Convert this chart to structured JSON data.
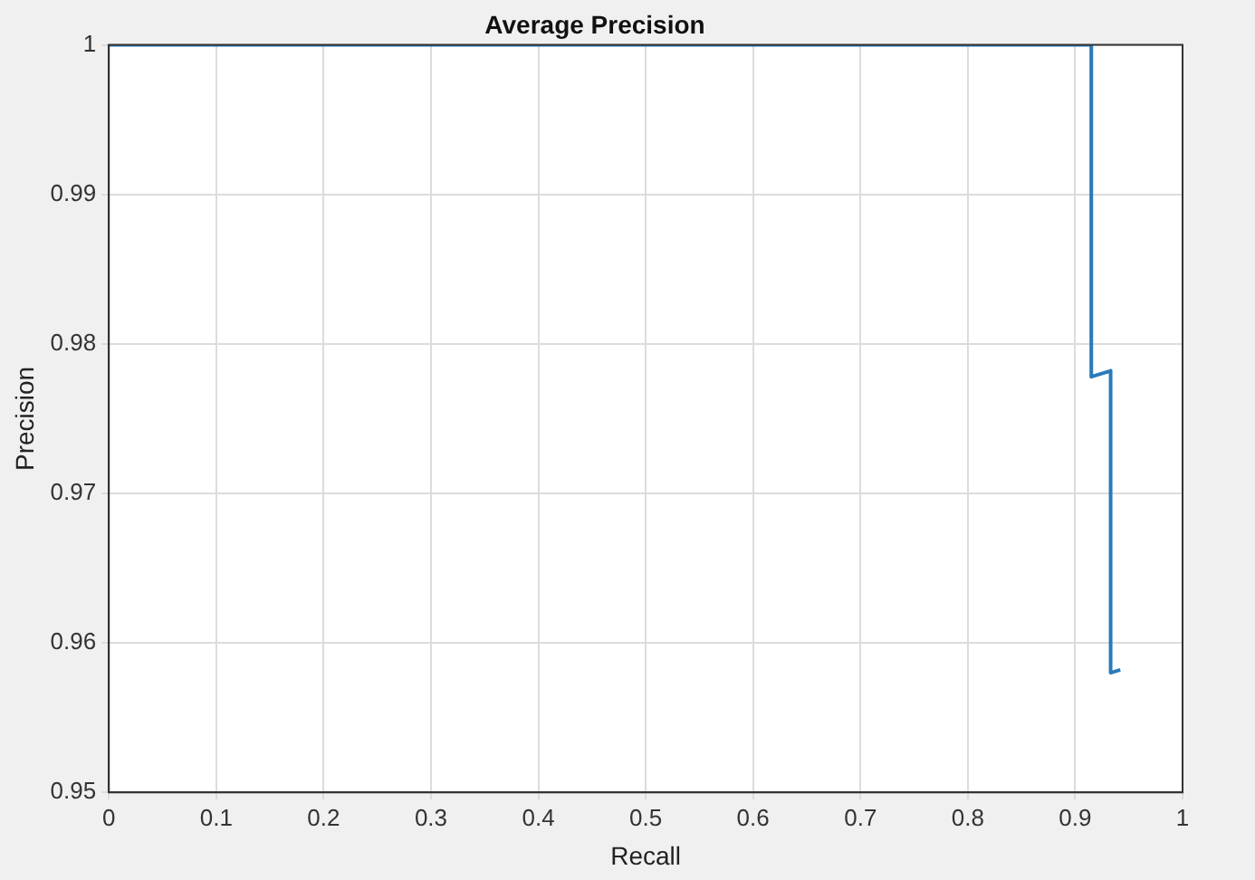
{
  "chart_data": {
    "type": "line",
    "title": "Average Precision",
    "xlabel": "Recall",
    "ylabel": "Precision",
    "x": [
      0,
      0.915,
      0.915,
      0.933,
      0.933,
      0.942
    ],
    "series": [
      {
        "color": "#2a7ab9",
        "values": [
          1,
          1,
          0.9778,
          0.9782,
          0.958,
          0.9582
        ]
      }
    ],
    "xlim": [
      0,
      1
    ],
    "xticks": [
      0,
      0.1,
      0.2,
      0.3,
      0.4,
      0.5,
      0.6,
      0.7,
      0.8,
      0.9,
      1
    ],
    "ylim": [
      0.95,
      1
    ],
    "yticks": [
      0.95,
      0.96,
      0.97,
      0.98,
      0.99,
      1
    ],
    "grid": true,
    "legend": false,
    "marker": "none",
    "line_style": "solid"
  }
}
